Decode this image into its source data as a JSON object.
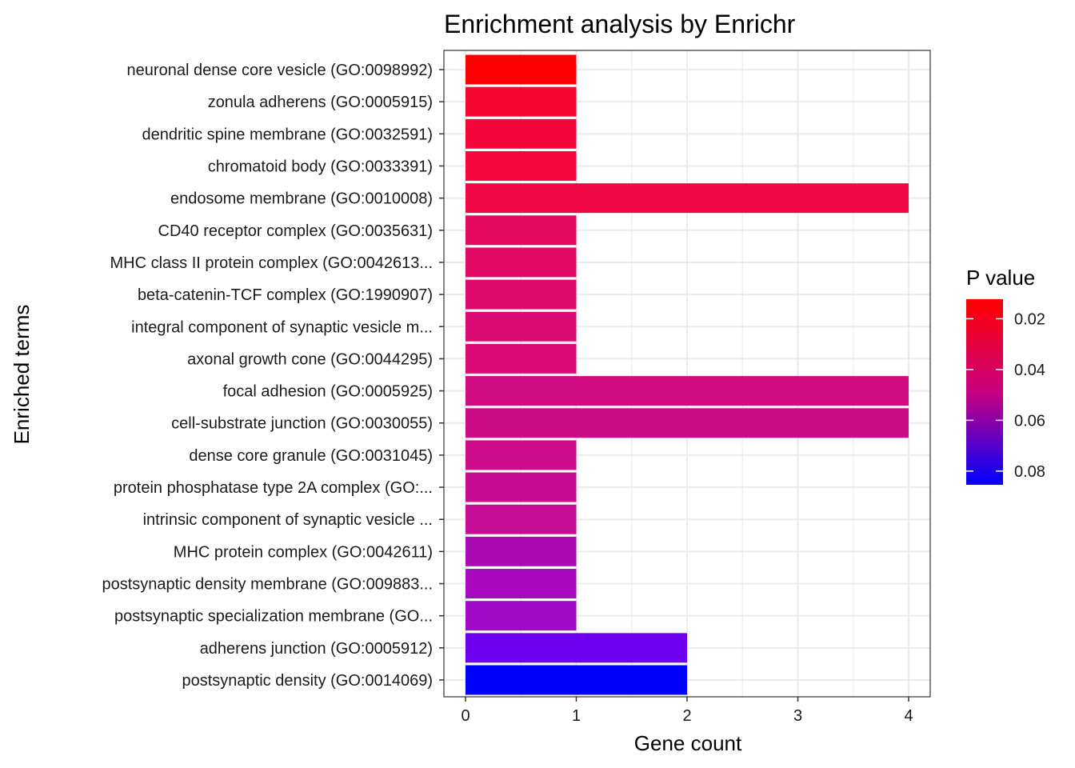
{
  "chart_data": {
    "type": "bar",
    "orientation": "horizontal",
    "title": "Enrichment analysis by Enrichr",
    "xlabel": "Gene count",
    "ylabel": "Enriched terms",
    "xlim": [
      0,
      4
    ],
    "x_ticks": [
      0,
      1,
      2,
      3,
      4
    ],
    "grid": true,
    "categories": [
      "neuronal dense core vesicle (GO:0098992)",
      "zonula adherens (GO:0005915)",
      "dendritic spine membrane (GO:0032591)",
      "chromatoid body (GO:0033391)",
      "endosome membrane (GO:0010008)",
      "CD40 receptor complex (GO:0035631)",
      "MHC class II protein complex (GO:0042613...",
      "beta-catenin-TCF complex (GO:1990907)",
      "integral component of synaptic vesicle m...",
      "axonal growth cone (GO:0044295)",
      "focal adhesion (GO:0005925)",
      "cell-substrate junction (GO:0030055)",
      "dense core granule (GO:0031045)",
      "protein phosphatase type 2A complex (GO:...",
      "intrinsic component of synaptic vesicle ...",
      "MHC protein complex (GO:0042611)",
      "postsynaptic density membrane (GO:009883...",
      "postsynaptic specialization membrane (GO...",
      "adherens junction (GO:0005912)",
      "postsynaptic density (GO:0014069)"
    ],
    "values": [
      1,
      1,
      1,
      1,
      4,
      1,
      1,
      1,
      1,
      1,
      4,
      4,
      1,
      1,
      1,
      1,
      1,
      1,
      2,
      2
    ],
    "bar_colors": [
      "#ff0000",
      "#f60630",
      "#f4063a",
      "#f3073c",
      "#f00845",
      "#e5095f",
      "#e20a66",
      "#df0a6d",
      "#dc0b73",
      "#da0b76",
      "#d10b82",
      "#ce0b86",
      "#cc0c8b",
      "#c80c91",
      "#c50d95",
      "#ad0ab7",
      "#a90ac0",
      "#a10ac8",
      "#6e00ef",
      "#0000ff"
    ],
    "legend": {
      "title": "P value",
      "position": "right",
      "ticks": [
        "0.02",
        "0.04",
        "0.06",
        "0.08"
      ],
      "tick_values": [
        0.02,
        0.04,
        0.06,
        0.08
      ],
      "range": [
        0.0123,
        0.0854
      ],
      "color_low": "#ff0000",
      "color_high": "#0000ff"
    },
    "panel_border": "#333333",
    "grid_color": "#ebebeb"
  }
}
